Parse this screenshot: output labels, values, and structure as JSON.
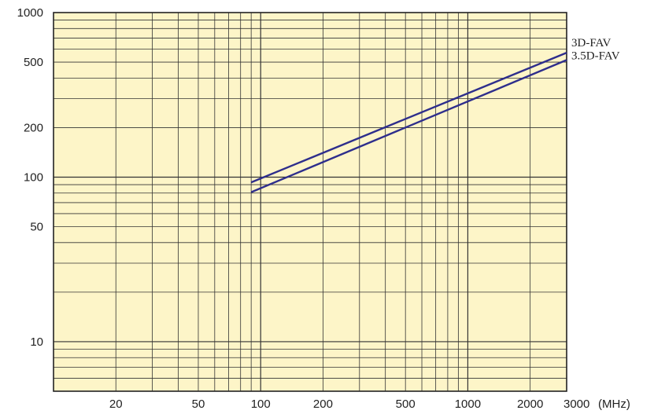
{
  "chart_data": {
    "type": "line",
    "title": "",
    "xlabel": "",
    "ylabel": "",
    "x_unit": "(MHz)",
    "x_scale": "log",
    "y_scale": "log",
    "xlim": [
      10,
      3000
    ],
    "ylim": [
      5,
      1000
    ],
    "x_ticks": [
      "20",
      "50",
      "100",
      "200",
      "500",
      "1000",
      "2000",
      "3000"
    ],
    "y_ticks": [
      "10",
      "50",
      "100",
      "200",
      "500",
      "1000"
    ],
    "grid": true,
    "colors": {
      "background": "#fdf5c8",
      "grid": "#333333",
      "line": "#2e2e8c"
    },
    "series": [
      {
        "name": "3D-FAV",
        "points": [
          [
            90,
            93
          ],
          [
            3000,
            570
          ]
        ]
      },
      {
        "name": "3.5D-FAV",
        "points": [
          [
            90,
            81
          ],
          [
            3000,
            515
          ]
        ]
      }
    ]
  }
}
